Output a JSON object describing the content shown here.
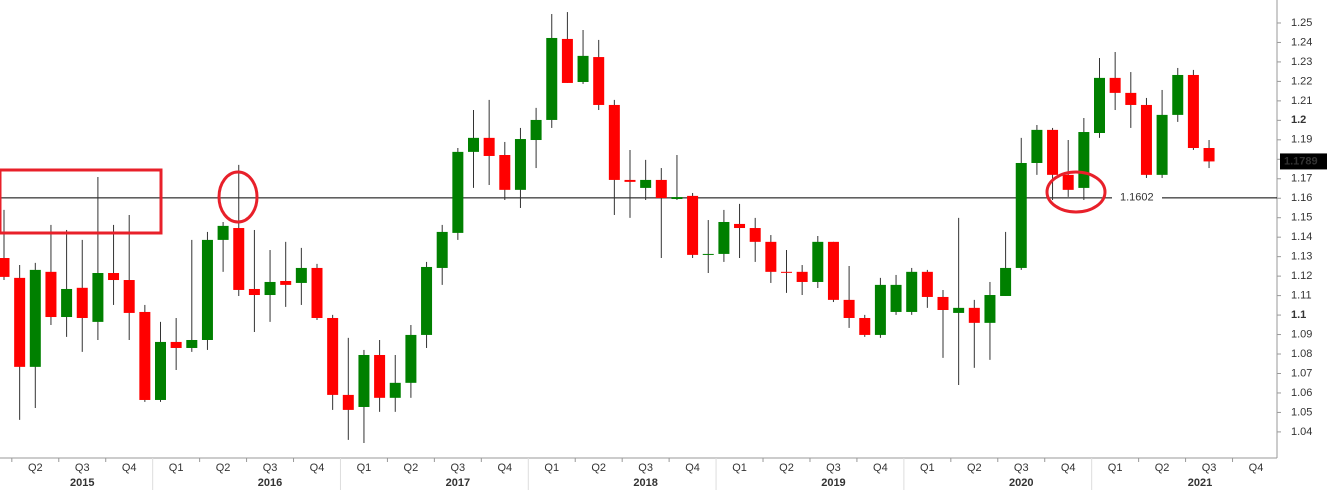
{
  "chart_data": {
    "type": "candlestick",
    "categories": [
      null,
      null,
      null,
      null,
      null,
      null,
      null,
      null,
      null,
      null,
      null,
      null,
      null,
      null,
      null,
      null,
      null,
      null,
      null,
      null,
      null,
      null,
      null,
      null,
      null,
      null,
      null,
      null,
      null,
      null,
      null,
      null,
      null,
      null,
      null,
      null,
      null,
      null,
      null,
      null,
      null,
      null,
      null,
      null,
      null,
      null,
      null,
      null,
      null,
      null,
      null,
      null,
      null,
      null,
      null,
      null,
      null,
      null,
      null,
      null,
      null,
      null,
      null,
      null,
      null,
      null,
      null,
      null,
      null,
      null,
      null,
      null,
      null,
      null,
      null,
      null,
      null,
      null
    ],
    "open": [
      1.1293,
      1.1191,
      1.0734,
      1.1222,
      1.099,
      1.114,
      1.0965,
      1.1216,
      1.118,
      1.1016,
      1.0564,
      1.0862,
      1.0831,
      1.0872,
      1.1386,
      1.1447,
      1.1134,
      1.1103,
      1.1175,
      1.1165,
      1.1242,
      1.0985,
      1.059,
      1.0528,
      1.0795,
      1.0575,
      1.0652,
      1.0898,
      1.1242,
      1.1422,
      1.1838,
      1.191,
      1.1822,
      1.1643,
      1.1899,
      1.2002,
      1.2418,
      1.2197,
      1.2325,
      1.2079,
      1.1694,
      1.1653,
      1.1694,
      1.1596,
      1.1612,
      1.1309,
      1.1314,
      1.1468,
      1.1447,
      1.1376,
      1.1222,
      1.1222,
      1.117,
      1.1376,
      1.1078,
      1.0985,
      1.0898,
      1.1016,
      1.1016,
      1.1222,
      1.1093,
      1.1011,
      1.1037,
      1.096,
      1.1098,
      1.1242,
      1.1781,
      1.1951,
      1.172,
      1.1653,
      1.1935,
      1.2218,
      1.2141,
      1.2079,
      1.172,
      1.2028,
      1.2233,
      1.1858
    ],
    "high": [
      1.154,
      1.1257,
      1.1268,
      1.1463,
      1.1437,
      1.1386,
      1.1709,
      1.1463,
      1.1514,
      1.1052,
      1.0965,
      1.0985,
      1.1386,
      1.1427,
      1.1478,
      1.1771,
      1.1437,
      1.1334,
      1.1376,
      1.1345,
      1.1263,
      1.1001,
      1.0883,
      1.0821,
      1.0872,
      1.0795,
      1.0949,
      1.1273,
      1.1463,
      1.1858,
      1.2053,
      1.2105,
      1.1889,
      1.1961,
      1.2064,
      1.2546,
      1.2556,
      1.2464,
      1.2413,
      1.2105,
      1.1848,
      1.1797,
      1.1755,
      1.1822,
      1.1627,
      1.1488,
      1.154,
      1.1571,
      1.1499,
      1.1411,
      1.1334,
      1.1257,
      1.1406,
      1.1376,
      1.1252,
      1.1001,
      1.1191,
      1.1206,
      1.1242,
      1.1232,
      1.1129,
      1.1499,
      1.1078,
      1.117,
      1.1427,
      1.191,
      1.1976,
      1.1961,
      1.1899,
      1.2012,
      1.232,
      1.2351,
      1.2248,
      1.2115,
      1.2156,
      1.2269,
      1.2259,
      1.1899
    ],
    "low": [
      1.118,
      1.0462,
      1.0523,
      1.0949,
      1.0888,
      1.0811,
      1.0872,
      1.1052,
      1.0872,
      1.0554,
      1.0554,
      1.0718,
      1.0811,
      1.0821,
      1.1222,
      1.1098,
      1.0913,
      1.0965,
      1.1042,
      1.1052,
      1.0975,
      1.0513,
      1.0359,
      1.0343,
      1.0503,
      1.0503,
      1.0575,
      1.0831,
      1.1155,
      1.1386,
      1.1653,
      1.1668,
      1.1591,
      1.155,
      1.1755,
      1.1961,
      1.2192,
      1.2187,
      1.2053,
      1.1514,
      1.1499,
      1.1591,
      1.1293,
      1.1591,
      1.1293,
      1.1216,
      1.1273,
      1.1293,
      1.1273,
      1.1165,
      1.1114,
      1.1103,
      1.1139,
      1.1067,
      1.0934,
      1.0888,
      1.0883,
      1.1001,
      1.1001,
      1.1037,
      1.078,
      1.0641,
      1.0729,
      1.077,
      1.1098,
      1.1232,
      1.172,
      1.1591,
      1.1607,
      1.1591,
      1.191,
      1.2053,
      1.1961,
      1.1704,
      1.1704,
      1.1992,
      1.1848,
      1.1755
    ],
    "close": [
      1.1196,
      1.0734,
      1.1232,
      1.099,
      1.1134,
      1.0985,
      1.1216,
      1.118,
      1.1011,
      1.0564,
      1.0862,
      1.0831,
      1.0872,
      1.1386,
      1.1458,
      1.1129,
      1.1103,
      1.117,
      1.1155,
      1.1242,
      1.0985,
      1.059,
      1.0513,
      1.0795,
      1.0575,
      1.0652,
      1.0898,
      1.1247,
      1.1427,
      1.1838,
      1.191,
      1.1817,
      1.1643,
      1.1904,
      1.2002,
      1.2423,
      1.2192,
      1.2331,
      1.2079,
      1.1694,
      1.1684,
      1.1694,
      1.1601,
      1.1606,
      1.1309,
      1.1314,
      1.1478,
      1.1447,
      1.1376,
      1.1222,
      1.1217,
      1.117,
      1.1376,
      1.1078,
      1.0985,
      1.0898,
      1.1155,
      1.1155,
      1.1222,
      1.1093,
      1.1026,
      1.1037,
      1.096,
      1.1103,
      1.1242,
      1.1781,
      1.1951,
      1.172,
      1.1643,
      1.194,
      1.2218,
      1.2141,
      1.2079,
      1.172,
      1.2028,
      1.2233,
      1.1858,
      1.1789
    ],
    "up_color": "#008000",
    "down_color": "#ff0000",
    "ylim": [
      1.0266,
      1.2618
    ],
    "yticks": [
      1.04,
      1.05,
      1.06,
      1.07,
      1.08,
      1.09,
      1.1,
      1.11,
      1.12,
      1.13,
      1.14,
      1.15,
      1.16,
      1.17,
      1.18,
      1.19,
      1.2,
      1.21,
      1.22,
      1.23,
      1.24,
      1.25
    ],
    "quarter_labels": [
      "Q2",
      "Q3",
      "Q4",
      "Q1",
      "Q2",
      "Q3",
      "Q4",
      "Q1",
      "Q2",
      "Q3",
      "Q4",
      "Q1",
      "Q2",
      "Q3",
      "Q4",
      "Q1",
      "Q2",
      "Q3",
      "Q4",
      "Q1",
      "Q2",
      "Q3",
      "Q4",
      "Q1",
      "Q2",
      "Q3",
      "Q4"
    ],
    "year_labels": [
      "2015",
      "2016",
      "2017",
      "2018",
      "2019",
      "2020",
      "2021"
    ],
    "level_line": 1.1602,
    "last_price": 1.1789
  }
}
